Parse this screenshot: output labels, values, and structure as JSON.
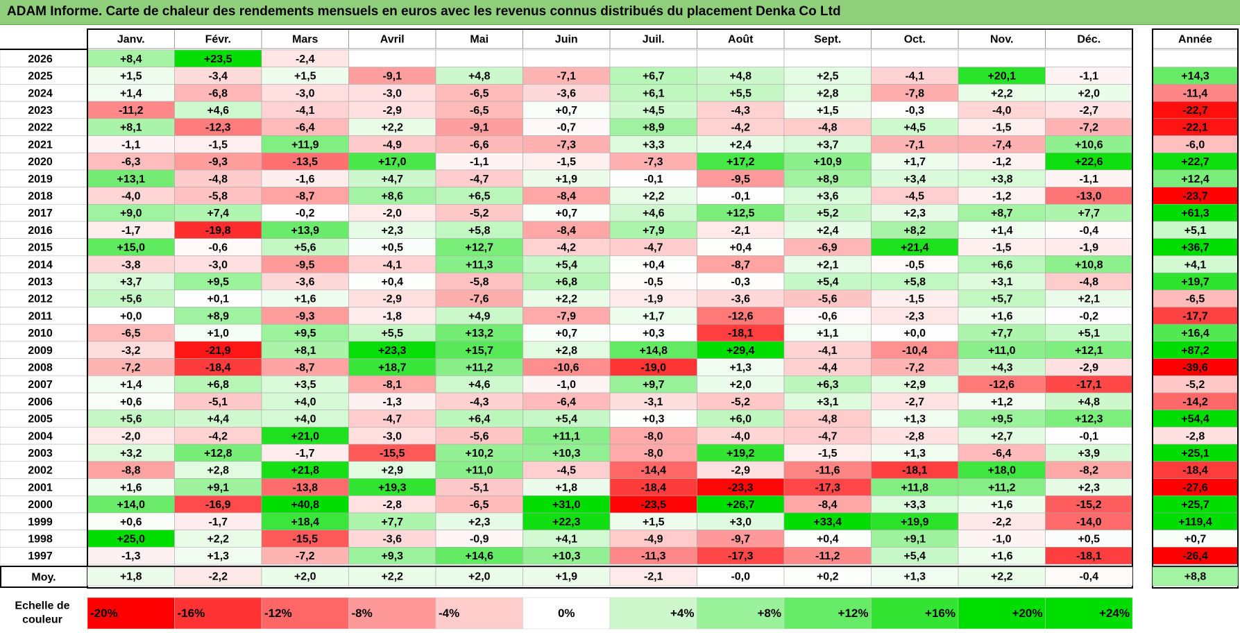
{
  "title": "ADAM Informe. Carte de chaleur des rendements mensuels en euros avec les revenus connus distribués du placement Denka Co Ltd",
  "chart_data": {
    "type": "heatmap",
    "title": "ADAM Informe. Carte de chaleur des rendements mensuels en euros avec les revenus connus distribués du placement Denka Co Ltd",
    "columns": [
      "Janv.",
      "Févr.",
      "Mars",
      "Avril",
      "Mai",
      "Juin",
      "Juil.",
      "Août",
      "Sept.",
      "Oct.",
      "Nov.",
      "Déc."
    ],
    "year_column_label": "Année",
    "years": [
      "2026",
      "2025",
      "2024",
      "2023",
      "2022",
      "2021",
      "2020",
      "2019",
      "2018",
      "2017",
      "2016",
      "2015",
      "2014",
      "2013",
      "2012",
      "2011",
      "2010",
      "2009",
      "2008",
      "2007",
      "2006",
      "2005",
      "2004",
      "2003",
      "2002",
      "2001",
      "2000",
      "1999",
      "1998",
      "1997"
    ],
    "values": [
      [
        "+8,4",
        "+23,5",
        "-2,4",
        "",
        "",
        "",
        "",
        "",
        "",
        "",
        "",
        ""
      ],
      [
        "+1,5",
        "-3,4",
        "+1,5",
        "-9,1",
        "+4,8",
        "-7,1",
        "+6,7",
        "+4,8",
        "+2,5",
        "-4,1",
        "+20,1",
        "-1,1"
      ],
      [
        "+1,4",
        "-6,8",
        "-3,0",
        "-3,0",
        "-6,5",
        "-3,6",
        "+6,1",
        "+5,5",
        "+2,8",
        "-7,8",
        "+2,2",
        "+2,0"
      ],
      [
        "-11,2",
        "+4,6",
        "-4,1",
        "-2,9",
        "-6,5",
        "+0,7",
        "+4,5",
        "-4,3",
        "+1,5",
        "-0,3",
        "-4,0",
        "-2,7"
      ],
      [
        "+8,1",
        "-12,3",
        "-6,4",
        "+2,2",
        "-9,1",
        "-0,7",
        "+8,9",
        "-4,2",
        "-4,8",
        "+4,5",
        "-1,5",
        "-7,2"
      ],
      [
        "-1,1",
        "-1,5",
        "+11,9",
        "-4,9",
        "-6,6",
        "-7,3",
        "+3,3",
        "+2,4",
        "+3,7",
        "-7,1",
        "-7,4",
        "+10,6"
      ],
      [
        "-6,3",
        "-9,3",
        "-13,5",
        "+17,0",
        "-1,1",
        "-1,5",
        "-7,3",
        "+17,2",
        "+10,9",
        "+1,7",
        "-1,2",
        "+22,6"
      ],
      [
        "+13,1",
        "-4,8",
        "-1,6",
        "+4,7",
        "-4,7",
        "+1,9",
        "-0,1",
        "-9,5",
        "+8,9",
        "+3,4",
        "+3,8",
        "-1,1"
      ],
      [
        "-4,0",
        "-5,8",
        "-8,7",
        "+8,6",
        "+6,5",
        "-8,4",
        "+2,2",
        "-0,1",
        "+3,6",
        "-4,5",
        "-1,2",
        "-13,0"
      ],
      [
        "+9,0",
        "+7,4",
        "-0,2",
        "-2,0",
        "-5,2",
        "+0,7",
        "+4,6",
        "+12,5",
        "+5,2",
        "+2,3",
        "+8,7",
        "+7,7"
      ],
      [
        "-1,7",
        "-19,8",
        "+13,9",
        "+2,3",
        "+5,8",
        "-8,4",
        "+7,9",
        "-2,1",
        "+2,4",
        "+8,2",
        "+1,4",
        "-0,4"
      ],
      [
        "+15,0",
        "-0,6",
        "+5,6",
        "+0,5",
        "+12,7",
        "-4,2",
        "-4,7",
        "+0,4",
        "-6,9",
        "+21,4",
        "-1,5",
        "-1,9"
      ],
      [
        "-3,8",
        "-3,0",
        "-9,5",
        "-4,1",
        "+11,3",
        "+5,4",
        "+0,4",
        "-8,7",
        "+2,1",
        "-0,5",
        "+6,6",
        "+10,8"
      ],
      [
        "+3,7",
        "+9,5",
        "-3,6",
        "+0,4",
        "-5,8",
        "+6,8",
        "-0,5",
        "-0,3",
        "+5,4",
        "+5,8",
        "+3,1",
        "-4,8"
      ],
      [
        "+5,6",
        "+0,1",
        "+1,6",
        "-2,9",
        "-7,6",
        "+2,2",
        "-1,9",
        "-3,6",
        "-5,6",
        "-1,5",
        "+5,7",
        "+2,1"
      ],
      [
        "+0,0",
        "+8,9",
        "-9,3",
        "-1,8",
        "+4,9",
        "-7,9",
        "+1,7",
        "-12,6",
        "-0,6",
        "-2,3",
        "+1,6",
        "-0,2"
      ],
      [
        "-6,5",
        "+1,0",
        "+9,5",
        "+5,5",
        "+13,2",
        "+0,7",
        "+0,3",
        "-18,1",
        "+1,1",
        "+0,0",
        "+7,7",
        "+5,1"
      ],
      [
        "-3,2",
        "-21,9",
        "+8,1",
        "+23,3",
        "+15,7",
        "+2,8",
        "+14,8",
        "+29,4",
        "-4,1",
        "-10,4",
        "+11,0",
        "+12,1"
      ],
      [
        "-7,2",
        "-18,4",
        "-8,7",
        "+18,7",
        "+11,2",
        "-10,6",
        "-19,0",
        "+1,3",
        "-4,4",
        "-7,2",
        "+4,3",
        "-2,9"
      ],
      [
        "+1,4",
        "+6,8",
        "+3,5",
        "-8,1",
        "+4,6",
        "-1,0",
        "+9,7",
        "+2,0",
        "+6,3",
        "+2,9",
        "-12,6",
        "-17,1"
      ],
      [
        "+0,6",
        "-5,1",
        "+4,0",
        "-1,3",
        "-4,3",
        "-6,4",
        "-3,1",
        "-5,2",
        "+3,1",
        "-2,7",
        "+1,2",
        "+4,8"
      ],
      [
        "+5,6",
        "+4,4",
        "+4,0",
        "-4,7",
        "+6,4",
        "+5,4",
        "+0,3",
        "+6,0",
        "-4,8",
        "+1,3",
        "+9,5",
        "+12,3"
      ],
      [
        "-2,0",
        "-4,2",
        "+21,0",
        "-3,0",
        "-5,6",
        "+11,1",
        "-8,0",
        "-4,0",
        "-4,7",
        "-2,8",
        "+2,7",
        "-0,1"
      ],
      [
        "+3,2",
        "+12,8",
        "-1,7",
        "-15,5",
        "+10,2",
        "+10,3",
        "-8,0",
        "+19,2",
        "-1,5",
        "+1,3",
        "-6,4",
        "+3,9"
      ],
      [
        "-8,8",
        "+2,8",
        "+21,8",
        "+2,9",
        "+11,0",
        "-4,5",
        "-14,4",
        "-2,9",
        "-11,6",
        "-18,1",
        "+18,0",
        "-8,2"
      ],
      [
        "+1,6",
        "+9,1",
        "-13,8",
        "+19,3",
        "-5,1",
        "+1,8",
        "-18,4",
        "-23,3",
        "-17,3",
        "+11,8",
        "+11,2",
        "+2,3"
      ],
      [
        "+14,0",
        "-16,9",
        "+40,8",
        "-2,8",
        "-6,5",
        "+31,0",
        "-23,5",
        "+26,7",
        "-8,4",
        "+3,3",
        "+1,6",
        "-15,2"
      ],
      [
        "+0,6",
        "-1,7",
        "+18,4",
        "+7,7",
        "+2,3",
        "+22,3",
        "+1,5",
        "+3,0",
        "+33,4",
        "+19,9",
        "-2,2",
        "-14,0"
      ],
      [
        "+25,0",
        "+2,2",
        "-15,5",
        "-3,6",
        "-0,9",
        "+4,1",
        "-4,9",
        "-9,7",
        "+0,4",
        "+9,1",
        "-1,0",
        "+0,5"
      ],
      [
        "-1,3",
        "+1,3",
        "-7,2",
        "+9,3",
        "+14,6",
        "+10,3",
        "-11,3",
        "-17,3",
        "-11,2",
        "+5,4",
        "+1,6",
        "-18,1"
      ]
    ],
    "annual": [
      "",
      "+14,3",
      "-11,4",
      "-22,7",
      "-22,1",
      "-6,0",
      "+22,7",
      "+12,4",
      "-23,7",
      "+61,3",
      "+5,1",
      "+36,7",
      "+4,1",
      "+19,7",
      "-6,5",
      "-17,7",
      "+16,4",
      "+87,2",
      "-39,6",
      "-5,2",
      "-14,2",
      "+54,4",
      "-2,8",
      "+25,1",
      "-18,4",
      "-27,6",
      "+25,7",
      "+119,4",
      "+0,7",
      "-26,4"
    ],
    "average_label": "Moy.",
    "averages": [
      "+1,8",
      "-2,2",
      "+2,0",
      "+2,2",
      "+2,0",
      "+1,9",
      "-2,1",
      "-0,0",
      "+0,2",
      "+1,3",
      "+2,2",
      "-0,4"
    ],
    "average_annual": "+8,8",
    "color_scale_label": [
      "Echelle de",
      "couleur"
    ],
    "color_scale": [
      {
        "label": "-20%",
        "value": -20
      },
      {
        "label": "-16%",
        "value": -16
      },
      {
        "label": "-12%",
        "value": -12
      },
      {
        "label": "-8%",
        "value": -8
      },
      {
        "label": "-4%",
        "value": -4
      },
      {
        "label": "0%",
        "value": 0
      },
      {
        "label": "+4%",
        "value": 4
      },
      {
        "label": "+8%",
        "value": 8
      },
      {
        "label": "+12%",
        "value": 12
      },
      {
        "label": "+16%",
        "value": 16
      },
      {
        "label": "+20%",
        "value": 20
      },
      {
        "label": "+24%",
        "value": 24
      }
    ],
    "colors": {
      "negative_max": "#ff0000",
      "zero": "#ffffff",
      "positive_max": "#00dd00",
      "title_bar": "#8fcf7b"
    }
  }
}
